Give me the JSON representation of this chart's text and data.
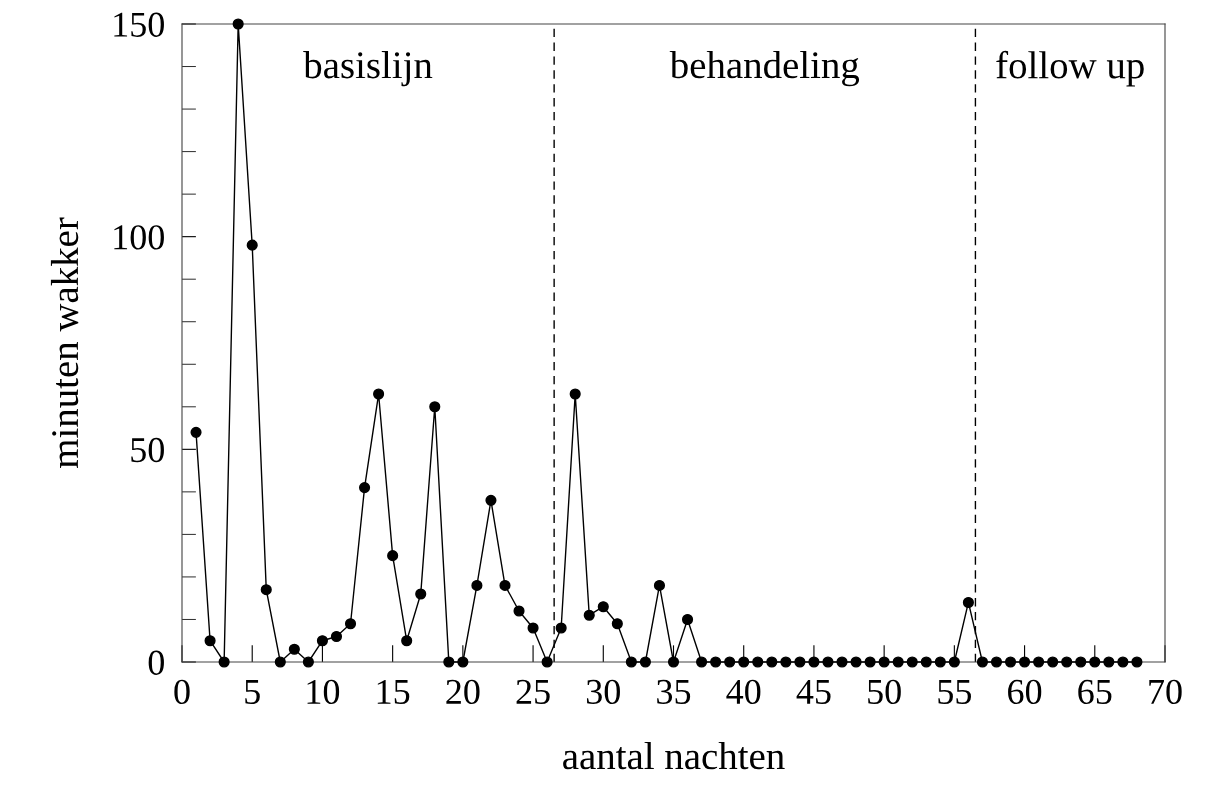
{
  "chart_data": {
    "type": "line",
    "xlabel": "aantal nachten",
    "ylabel": "minuten wakker",
    "x": [
      1,
      2,
      3,
      4,
      5,
      6,
      7,
      8,
      9,
      10,
      11,
      12,
      13,
      14,
      15,
      16,
      17,
      18,
      19,
      20,
      21,
      22,
      23,
      24,
      25,
      26,
      27,
      28,
      29,
      30,
      31,
      32,
      33,
      34,
      35,
      36,
      37,
      38,
      39,
      40,
      41,
      42,
      43,
      44,
      45,
      46,
      47,
      48,
      49,
      50,
      51,
      52,
      53,
      54,
      55,
      56,
      57,
      58,
      59,
      60,
      61,
      62,
      63,
      64,
      65,
      66,
      67,
      68
    ],
    "values": [
      54,
      5,
      0,
      150,
      98,
      17,
      0,
      3,
      0,
      5,
      6,
      9,
      41,
      63,
      25,
      5,
      16,
      60,
      0,
      0,
      18,
      38,
      18,
      12,
      8,
      0,
      8,
      63,
      11,
      13,
      9,
      0,
      0,
      18,
      0,
      10,
      0,
      0,
      0,
      0,
      0,
      0,
      0,
      0,
      0,
      0,
      0,
      0,
      0,
      0,
      0,
      0,
      0,
      0,
      0,
      14,
      0,
      0,
      0,
      0,
      0,
      0,
      0,
      0,
      0,
      0,
      0,
      0
    ],
    "color": "#000000",
    "marker": "circle",
    "line_style": "solid",
    "xlim": [
      0,
      70
    ],
    "xticks": [
      0,
      5,
      10,
      15,
      20,
      25,
      30,
      35,
      40,
      45,
      50,
      55,
      60,
      65,
      70
    ],
    "ylim": [
      0,
      150
    ],
    "yticks": [
      0,
      50,
      100,
      150
    ],
    "ref_lines": [
      {
        "axis": "x",
        "value": 26.5,
        "line_style": "dashed",
        "color": "#000000"
      },
      {
        "axis": "x",
        "value": 56.5,
        "line_style": "dashed",
        "color": "#000000"
      }
    ],
    "annotations": [
      "basislijn",
      "behandeling",
      "follow up"
    ],
    "grid": false,
    "legend": false
  }
}
